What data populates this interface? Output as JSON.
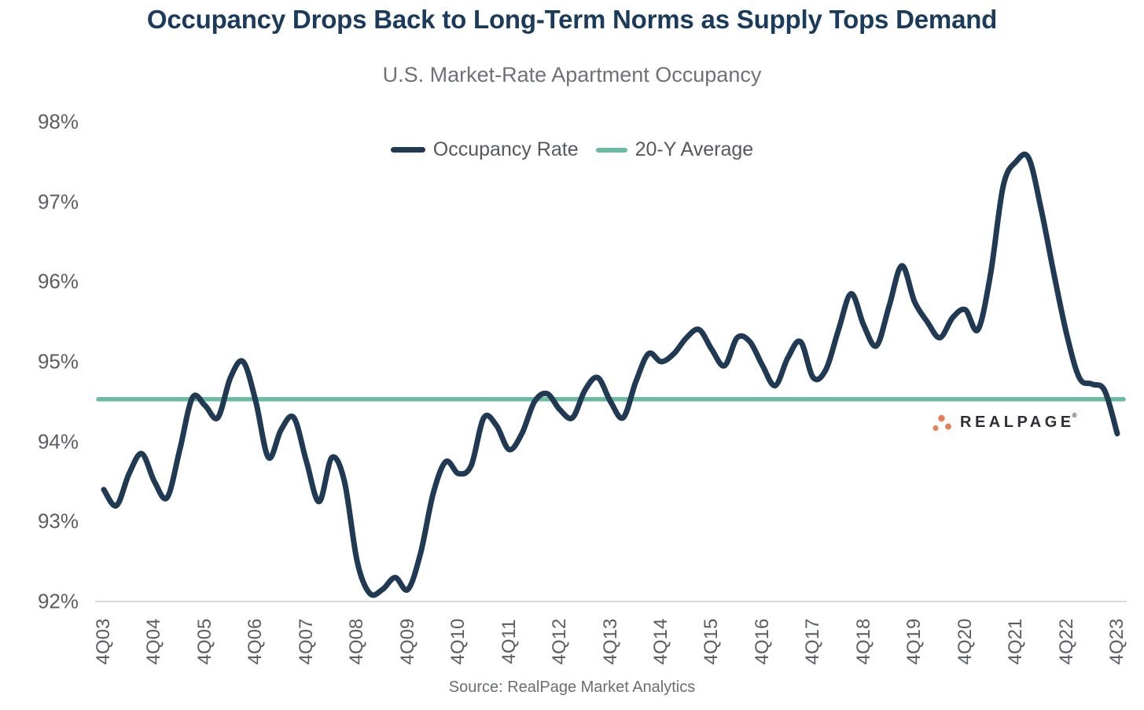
{
  "header": {
    "title": "Occupancy Drops Back to Long-Term Norms as Supply Tops Demand",
    "subtitle": "U.S. Market-Rate Apartment Occupancy"
  },
  "legend": {
    "items": [
      {
        "label": "Occupancy Rate",
        "color": "#1F3A52"
      },
      {
        "label": "20-Y Average",
        "color": "#69BCA0"
      }
    ]
  },
  "footer": {
    "source": "Source: RealPage Market Analytics"
  },
  "logo": {
    "text": "REALPAGE",
    "registered_mark": "®",
    "dot_color": "#EC7B5A",
    "text_color": "#2E2E36"
  },
  "chart_data": {
    "type": "line",
    "title": "U.S. Market-Rate Apartment Occupancy",
    "x": [
      "4Q03",
      "1Q04",
      "2Q04",
      "3Q04",
      "4Q04",
      "1Q05",
      "2Q05",
      "3Q05",
      "4Q05",
      "1Q06",
      "2Q06",
      "3Q06",
      "4Q06",
      "1Q07",
      "2Q07",
      "3Q07",
      "4Q07",
      "1Q08",
      "2Q08",
      "3Q08",
      "4Q08",
      "1Q09",
      "2Q09",
      "3Q09",
      "4Q09",
      "1Q10",
      "2Q10",
      "3Q10",
      "4Q10",
      "1Q11",
      "2Q11",
      "3Q11",
      "4Q11",
      "1Q12",
      "2Q12",
      "3Q12",
      "4Q12",
      "1Q13",
      "2Q13",
      "3Q13",
      "4Q13",
      "1Q14",
      "2Q14",
      "3Q14",
      "4Q14",
      "1Q15",
      "2Q15",
      "3Q15",
      "4Q15",
      "1Q16",
      "2Q16",
      "3Q16",
      "4Q16",
      "1Q17",
      "2Q17",
      "3Q17",
      "4Q17",
      "1Q18",
      "2Q18",
      "3Q18",
      "4Q18",
      "1Q19",
      "2Q19",
      "3Q19",
      "4Q19",
      "1Q20",
      "2Q20",
      "3Q20",
      "4Q20",
      "1Q21",
      "2Q21",
      "3Q21",
      "4Q21",
      "1Q22",
      "2Q22",
      "3Q22",
      "4Q22",
      "1Q23",
      "2Q23",
      "3Q23",
      "4Q23"
    ],
    "series": [
      {
        "name": "Occupancy Rate",
        "color": "#1F3A52",
        "values": [
          93.4,
          93.2,
          93.6,
          93.85,
          93.5,
          93.3,
          93.9,
          94.55,
          94.45,
          94.3,
          94.8,
          95.0,
          94.5,
          93.8,
          94.15,
          94.3,
          93.75,
          93.25,
          93.8,
          93.5,
          92.5,
          92.1,
          92.15,
          92.3,
          92.15,
          92.6,
          93.35,
          93.75,
          93.6,
          93.7,
          94.3,
          94.2,
          93.9,
          94.1,
          94.5,
          94.6,
          94.4,
          94.3,
          94.65,
          94.8,
          94.5,
          94.3,
          94.75,
          95.1,
          95.0,
          95.1,
          95.3,
          95.4,
          95.15,
          94.95,
          95.3,
          95.25,
          94.95,
          94.7,
          95.05,
          95.25,
          94.8,
          94.9,
          95.4,
          95.85,
          95.45,
          95.2,
          95.7,
          96.2,
          95.75,
          95.5,
          95.3,
          95.55,
          95.65,
          95.4,
          96.1,
          97.2,
          97.5,
          97.55,
          96.9,
          96.1,
          95.35,
          94.8,
          94.72,
          94.64,
          94.1
        ]
      },
      {
        "name": "20-Y Average",
        "color": "#69BCA0",
        "constant_value": 94.53
      }
    ],
    "ylim": [
      92,
      98
    ],
    "ytick_labels": [
      "98%",
      "97%",
      "96%",
      "95%",
      "94%",
      "93%",
      "92%"
    ],
    "x_tick_labels": [
      "4Q03",
      "4Q04",
      "4Q05",
      "4Q06",
      "4Q07",
      "4Q08",
      "4Q09",
      "4Q10",
      "4Q11",
      "4Q12",
      "4Q13",
      "4Q14",
      "4Q15",
      "4Q16",
      "4Q17",
      "4Q18",
      "4Q19",
      "4Q20",
      "4Q21",
      "4Q22",
      "4Q23"
    ],
    "x_tick_every": 4,
    "grid": false,
    "legend_position": "top-center",
    "axis_color": "#D9D9D9",
    "tick_label_color": "#5A5E63"
  }
}
